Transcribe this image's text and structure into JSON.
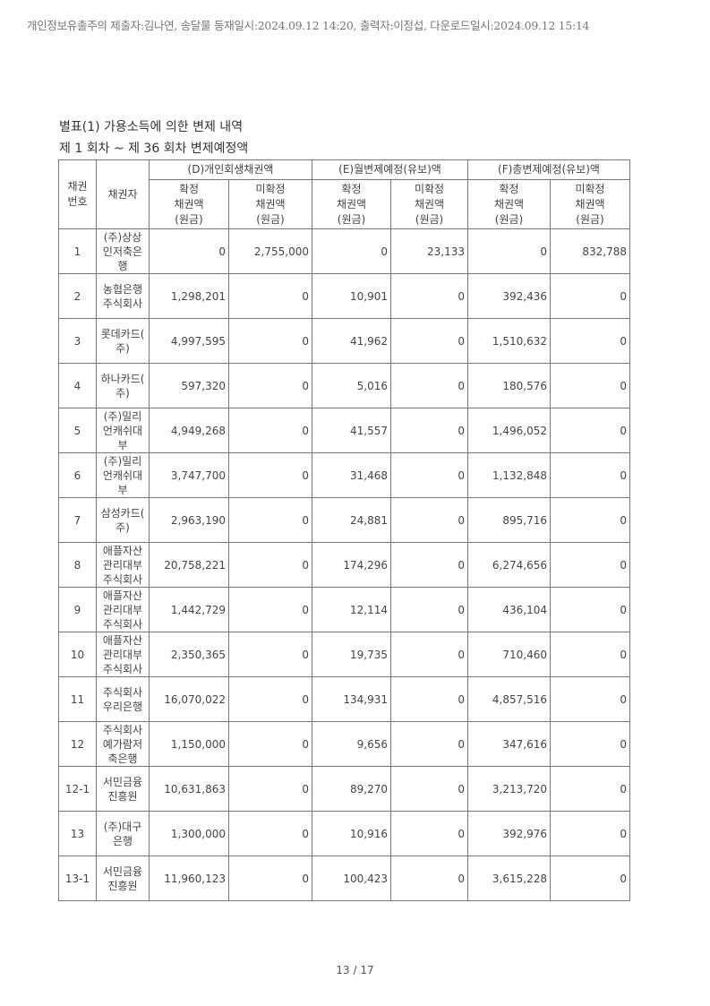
{
  "watermark_header": "개인정보유출주의 제출자:김나연, 송달물 등재일시:2024.09.12 14:20, 출력자:이정섭, 다운로드일시:2024.09.12 15:14",
  "title": "별표(1) 가용소득에 의한 변제 내역",
  "subtitle": "제 1 회차 ~ 제 36 회차 변제예정액",
  "table": {
    "col_no": "채권\n번호",
    "col_creditor": "채권자",
    "groups": [
      "(D)개인회생채권액",
      "(E)월변제예정(유보)액",
      "(F)총변제예정(유보)액"
    ],
    "sub_confirmed": "확정\n채권액\n(원금)",
    "sub_unconfirmed": "미확정\n채권액\n(원금)",
    "rows": [
      {
        "no": "1",
        "creditor": "(주)상상\n인저축은\n행",
        "v": [
          "0",
          "2,755,000",
          "0",
          "23,133",
          "0",
          "832,788"
        ]
      },
      {
        "no": "2",
        "creditor": "농협은행\n주식회사",
        "v": [
          "1,298,201",
          "0",
          "10,901",
          "0",
          "392,436",
          "0"
        ]
      },
      {
        "no": "3",
        "creditor": "롯데카드(\n주)",
        "v": [
          "4,997,595",
          "0",
          "41,962",
          "0",
          "1,510,632",
          "0"
        ]
      },
      {
        "no": "4",
        "creditor": "하나카드(\n주)",
        "v": [
          "597,320",
          "0",
          "5,016",
          "0",
          "180,576",
          "0"
        ]
      },
      {
        "no": "5",
        "creditor": "(주)밀리\n언캐쉬대\n부",
        "v": [
          "4,949,268",
          "0",
          "41,557",
          "0",
          "1,496,052",
          "0"
        ]
      },
      {
        "no": "6",
        "creditor": "(주)밀리\n언캐쉬대\n부",
        "v": [
          "3,747,700",
          "0",
          "31,468",
          "0",
          "1,132,848",
          "0"
        ]
      },
      {
        "no": "7",
        "creditor": "삼성카드(\n주)",
        "v": [
          "2,963,190",
          "0",
          "24,881",
          "0",
          "895,716",
          "0"
        ]
      },
      {
        "no": "8",
        "creditor": "애플자산\n관리대부\n주식회사",
        "v": [
          "20,758,221",
          "0",
          "174,296",
          "0",
          "6,274,656",
          "0"
        ]
      },
      {
        "no": "9",
        "creditor": "애플자산\n관리대부\n주식회사",
        "v": [
          "1,442,729",
          "0",
          "12,114",
          "0",
          "436,104",
          "0"
        ]
      },
      {
        "no": "10",
        "creditor": "애플자산\n관리대부\n주식회사",
        "v": [
          "2,350,365",
          "0",
          "19,735",
          "0",
          "710,460",
          "0"
        ]
      },
      {
        "no": "11",
        "creditor": "주식회사\n우리은행",
        "v": [
          "16,070,022",
          "0",
          "134,931",
          "0",
          "4,857,516",
          "0"
        ]
      },
      {
        "no": "12",
        "creditor": "주식회사\n예가람저\n축은행",
        "v": [
          "1,150,000",
          "0",
          "9,656",
          "0",
          "347,616",
          "0"
        ]
      },
      {
        "no": "12-1",
        "creditor": "서민금융\n진흥원",
        "v": [
          "10,631,863",
          "0",
          "89,270",
          "0",
          "3,213,720",
          "0"
        ]
      },
      {
        "no": "13",
        "creditor": "(주)대구\n은행",
        "v": [
          "1,300,000",
          "0",
          "10,916",
          "0",
          "392,976",
          "0"
        ]
      },
      {
        "no": "13-1",
        "creditor": "서민금융\n진흥원",
        "v": [
          "11,960,123",
          "0",
          "100,423",
          "0",
          "3,615,228",
          "0"
        ]
      }
    ]
  },
  "page_number": "13 / 17"
}
